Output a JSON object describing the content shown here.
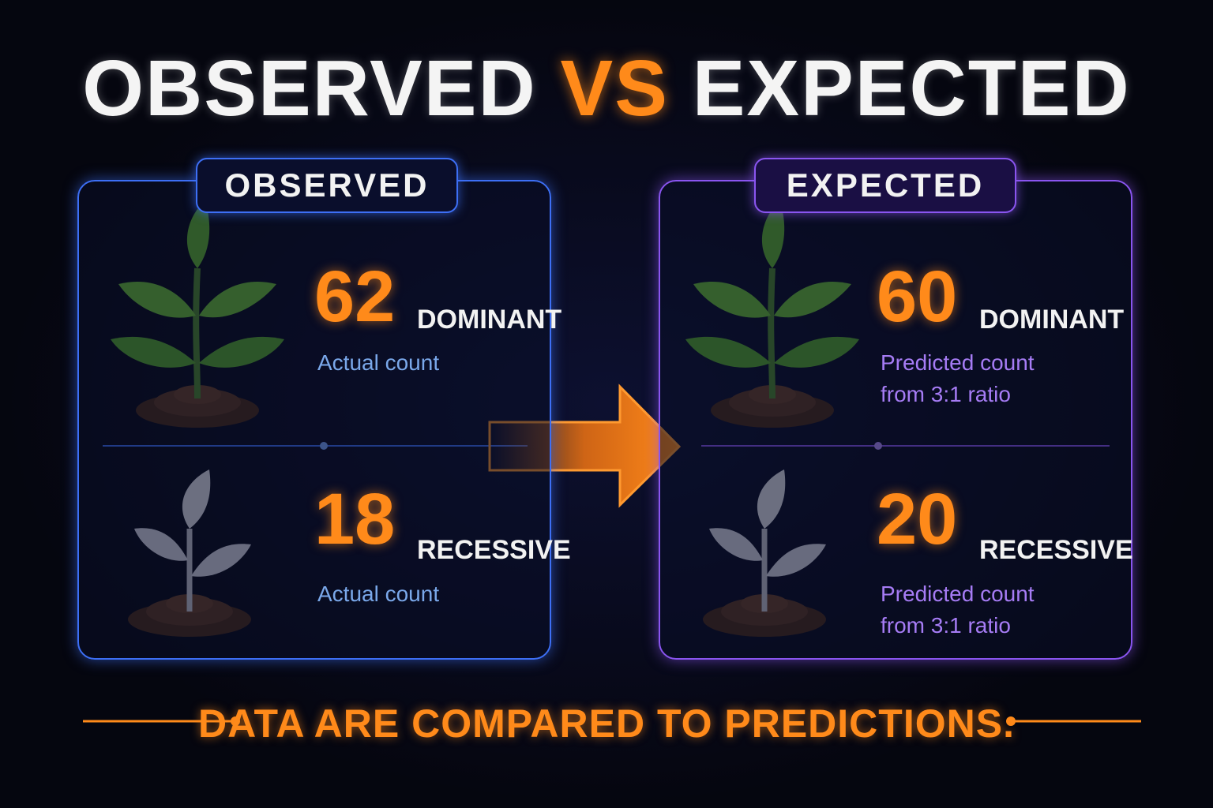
{
  "title": {
    "left": "OBSERVED",
    "middle": "VS",
    "right": "EXPECTED"
  },
  "panels": [
    {
      "label": "OBSERVED",
      "rows": [
        {
          "count": 62,
          "type": "DOMINANT",
          "note": [
            "Actual count"
          ]
        },
        {
          "count": 18,
          "type": "RECESSIVE",
          "note": [
            "Actual count"
          ]
        }
      ]
    },
    {
      "label": "EXPECTED",
      "rows": [
        {
          "count": 60,
          "type": "DOMINANT",
          "note": [
            "Predicted count",
            "from 3:1 ratio"
          ]
        },
        {
          "count": 20,
          "type": "RECESSIVE",
          "note": [
            "Predicted count",
            "from 3:1 ratio"
          ]
        }
      ]
    }
  ],
  "footer": "DATA ARE COMPARED TO PREDICTIONS."
}
